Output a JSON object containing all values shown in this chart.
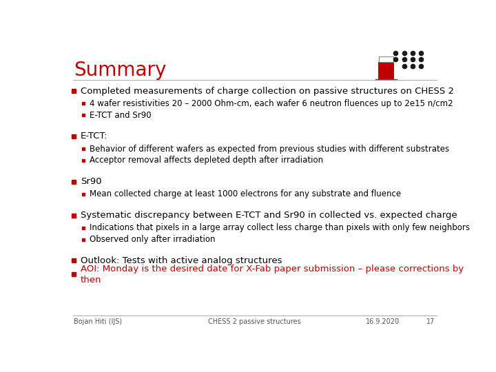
{
  "title": "Summary",
  "title_color": "#C00000",
  "title_fontsize": 20,
  "bg_color": "#FFFFFF",
  "footer_left": "Bojan Hiti (IJS)",
  "footer_center": "CHESS 2 passive structures",
  "footer_right": "16.9.2020",
  "footer_page": "17",
  "bullet_color": "#C00000",
  "text_color": "#000000",
  "red_text_color": "#C00000",
  "font_size_l0": 9.5,
  "font_size_l1": 8.5,
  "bullet_size_l0": 4.5,
  "bullet_size_l1": 3.5,
  "content": [
    {
      "level": 0,
      "text": "Completed measurements of charge collection on passive structures on CHESS 2",
      "color": "#000000"
    },
    {
      "level": 1,
      "text": "4 wafer resistivities 20 – 2000 Ohm-cm, each wafer 6 neutron fluences up to 2e15 n/cm2",
      "color": "#000000"
    },
    {
      "level": 1,
      "text": "E-TCT and Sr90",
      "color": "#000000"
    },
    {
      "level": -1,
      "text": "",
      "color": "#000000"
    },
    {
      "level": 0,
      "text": "E-TCT:",
      "color": "#000000"
    },
    {
      "level": 1,
      "text": "Behavior of different wafers as expected from previous studies with different substrates",
      "color": "#000000"
    },
    {
      "level": 1,
      "text": "Acceptor removal affects depleted depth after irradiation",
      "color": "#000000"
    },
    {
      "level": -1,
      "text": "",
      "color": "#000000"
    },
    {
      "level": 0,
      "text": "Sr90",
      "color": "#000000"
    },
    {
      "level": 1,
      "text": "Mean collected charge at least 1000 electrons for any substrate and fluence",
      "color": "#000000"
    },
    {
      "level": -1,
      "text": "",
      "color": "#000000"
    },
    {
      "level": 0,
      "text": "Systematic discrepancy between E-TCT and Sr90 in collected vs. expected charge",
      "color": "#000000"
    },
    {
      "level": 1,
      "text": "Indications that pixels in a large array collect less charge than pixels with only few neighbors",
      "color": "#000000"
    },
    {
      "level": 1,
      "text": "Observed only after irradiation",
      "color": "#000000"
    },
    {
      "level": -1,
      "text": "",
      "color": "#000000"
    },
    {
      "level": 0,
      "text": "Outlook: Tests with active analog structures",
      "color": "#000000"
    },
    {
      "level": 0,
      "text": "AOI: Monday is the desired date for X-Fab paper submission – please corrections by\nthen",
      "color": "#C00000"
    }
  ],
  "line_heights": {
    "0": 0.048,
    "1": 0.04,
    "-1": 0.03
  },
  "separator_color": "#AAAAAA",
  "footer_color": "#555555",
  "footer_fontsize": 7.0
}
